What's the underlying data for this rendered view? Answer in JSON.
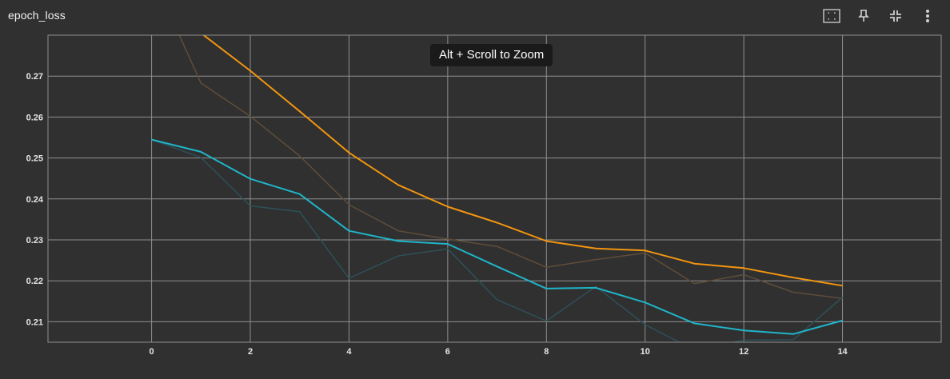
{
  "card": {
    "title": "epoch_loss",
    "tooltip": "Alt + Scroll to Zoom"
  },
  "toolbar": {
    "icons": [
      "fit-domain-icon",
      "pin-icon",
      "collapse-icon",
      "more-vert-icon"
    ]
  },
  "colors": {
    "background": "#303030",
    "grid": "#8f8f8f",
    "orange_smoothed": "#f2950f",
    "orange_raw": "#5e4d3a",
    "cyan_smoothed": "#1fb5c9",
    "cyan_raw": "#2d5158"
  },
  "chart_data": {
    "type": "line",
    "title": "epoch_loss",
    "xlabel": "",
    "ylabel": "",
    "xlim": [
      -2.1,
      16
    ],
    "ylim": [
      0.205,
      0.28
    ],
    "x_ticks": [
      0,
      2,
      4,
      6,
      8,
      10,
      12,
      14
    ],
    "y_ticks": [
      0.21,
      0.22,
      0.23,
      0.24,
      0.25,
      0.26,
      0.27
    ],
    "y_tick_labels": [
      "0.21",
      "0.22",
      "0.23",
      "0.24",
      "0.25",
      "0.26",
      "0.27"
    ],
    "x_tick_labels": [
      "0",
      "2",
      "4",
      "6",
      "8",
      "10",
      "12",
      "14"
    ],
    "grid": true,
    "series": [
      {
        "role": "raw",
        "color": "#5e4d3a",
        "x": [
          0,
          1,
          2,
          3,
          4,
          5,
          6,
          7,
          8,
          9,
          10,
          11,
          12,
          13,
          14
        ],
        "values": [
          0.295,
          0.2683,
          0.2602,
          0.2505,
          0.2386,
          0.2322,
          0.2302,
          0.2284,
          0.2233,
          0.2252,
          0.2268,
          0.2193,
          0.2215,
          0.2172,
          0.2157
        ]
      },
      {
        "role": "smoothed",
        "color": "#f2950f",
        "x": [
          0,
          1,
          2,
          3,
          4,
          5,
          6,
          7,
          8,
          9,
          10,
          11,
          12,
          13,
          14
        ],
        "values": [
          0.292,
          0.2805,
          0.2713,
          0.2614,
          0.2513,
          0.2434,
          0.2381,
          0.2342,
          0.2297,
          0.2279,
          0.2274,
          0.2242,
          0.2231,
          0.2208,
          0.2188
        ]
      },
      {
        "role": "raw",
        "color": "#2d5158",
        "x": [
          0,
          1,
          2,
          3,
          4,
          5,
          6,
          7,
          8,
          9,
          10,
          11,
          12,
          13,
          14
        ],
        "values": [
          0.2545,
          0.2501,
          0.2383,
          0.2369,
          0.2206,
          0.2261,
          0.2278,
          0.2154,
          0.2102,
          0.2186,
          0.2093,
          0.2031,
          0.2055,
          0.2056,
          0.216
        ]
      },
      {
        "role": "smoothed",
        "color": "#1fb5c9",
        "x": [
          0,
          1,
          2,
          3,
          4,
          5,
          6,
          7,
          8,
          9,
          10,
          11,
          12,
          13,
          14
        ],
        "values": [
          0.2545,
          0.2515,
          0.2449,
          0.2412,
          0.2322,
          0.2297,
          0.229,
          0.2235,
          0.2181,
          0.2183,
          0.2147,
          0.2096,
          0.2079,
          0.207,
          0.2103
        ]
      }
    ]
  }
}
